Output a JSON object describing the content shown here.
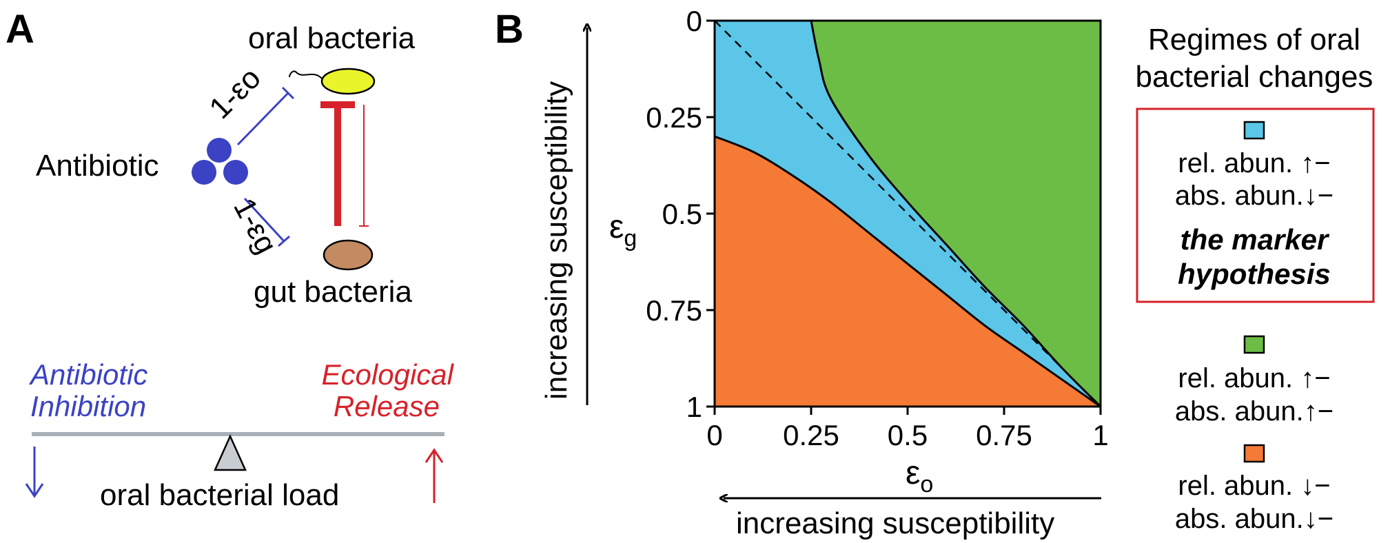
{
  "panel_a": {
    "label": "A",
    "oral_bacteria": "oral bacteria",
    "gut_bacteria": "gut bacteria",
    "antibiotic": "Antibiotic",
    "edge_oral": "1-εo",
    "edge_gut": "1-εg",
    "antibiotic_inhibition_1": "Antibiotic",
    "antibiotic_inhibition_2": "Inhibition",
    "ecological_release_1": "Ecological",
    "ecological_release_2": "Release",
    "load_label": "oral bacterial load",
    "down_arrow": "↓",
    "up_arrow": "↑",
    "colors": {
      "antibiotic": "#3b42c4",
      "release": "#d6222a",
      "oral": "#e9f52a",
      "gut": "#c48a62"
    }
  },
  "panel_b": {
    "label": "B",
    "x_label": "εo",
    "y_label": "εg",
    "x_arrow_label": "increasing susceptibility",
    "y_arrow_label": "increasing susceptibility"
  },
  "legend": {
    "title_1": "Regimes of oral",
    "title_2": "bacterial changes",
    "items": [
      {
        "color": "#5bc6e8",
        "line1": "rel. abun. ↑−",
        "line2": "abs. abun.↓−",
        "note1": "the marker",
        "note2": "hypothesis"
      },
      {
        "color": "#6cbd45",
        "line1": "rel. abun. ↑−",
        "line2": "abs. abun.↑−"
      },
      {
        "color": "#f47a35",
        "line1": "rel. abun. ↓−",
        "line2": "abs. abun.↓−"
      }
    ],
    "box_color": "#d6222a"
  },
  "chart_data": {
    "type": "area",
    "xlabel": "εo",
    "ylabel": "εg",
    "xlim": [
      0,
      1
    ],
    "ylim": [
      1,
      0
    ],
    "x_ticks": [
      "0",
      "0.25",
      "0.5",
      "0.75",
      "1"
    ],
    "y_ticks": [
      "0",
      "0.25",
      "0.5",
      "0.75",
      "1"
    ],
    "series": [
      {
        "color": "#f47a35",
        "boundary": [
          [
            0,
            0.3
          ],
          [
            0.1,
            0.34
          ],
          [
            0.2,
            0.4
          ],
          [
            0.3,
            0.47
          ],
          [
            0.4,
            0.55
          ],
          [
            0.5,
            0.63
          ],
          [
            0.6,
            0.71
          ],
          [
            0.7,
            0.79
          ],
          [
            0.8,
            0.86
          ],
          [
            0.9,
            0.93
          ],
          [
            1,
            1
          ]
        ]
      },
      {
        "color": "#5bc6e8",
        "boundary": [
          [
            0.25,
            0
          ],
          [
            0.27,
            0.1
          ],
          [
            0.3,
            0.2
          ],
          [
            0.4,
            0.35
          ],
          [
            0.5,
            0.47
          ],
          [
            0.6,
            0.58
          ],
          [
            0.7,
            0.69
          ],
          [
            0.8,
            0.79
          ],
          [
            0.9,
            0.9
          ],
          [
            1,
            1
          ]
        ]
      },
      {
        "color": "#6cbd45",
        "boundary": []
      }
    ],
    "reference_line": [
      [
        0,
        0
      ],
      [
        1,
        1
      ]
    ]
  }
}
